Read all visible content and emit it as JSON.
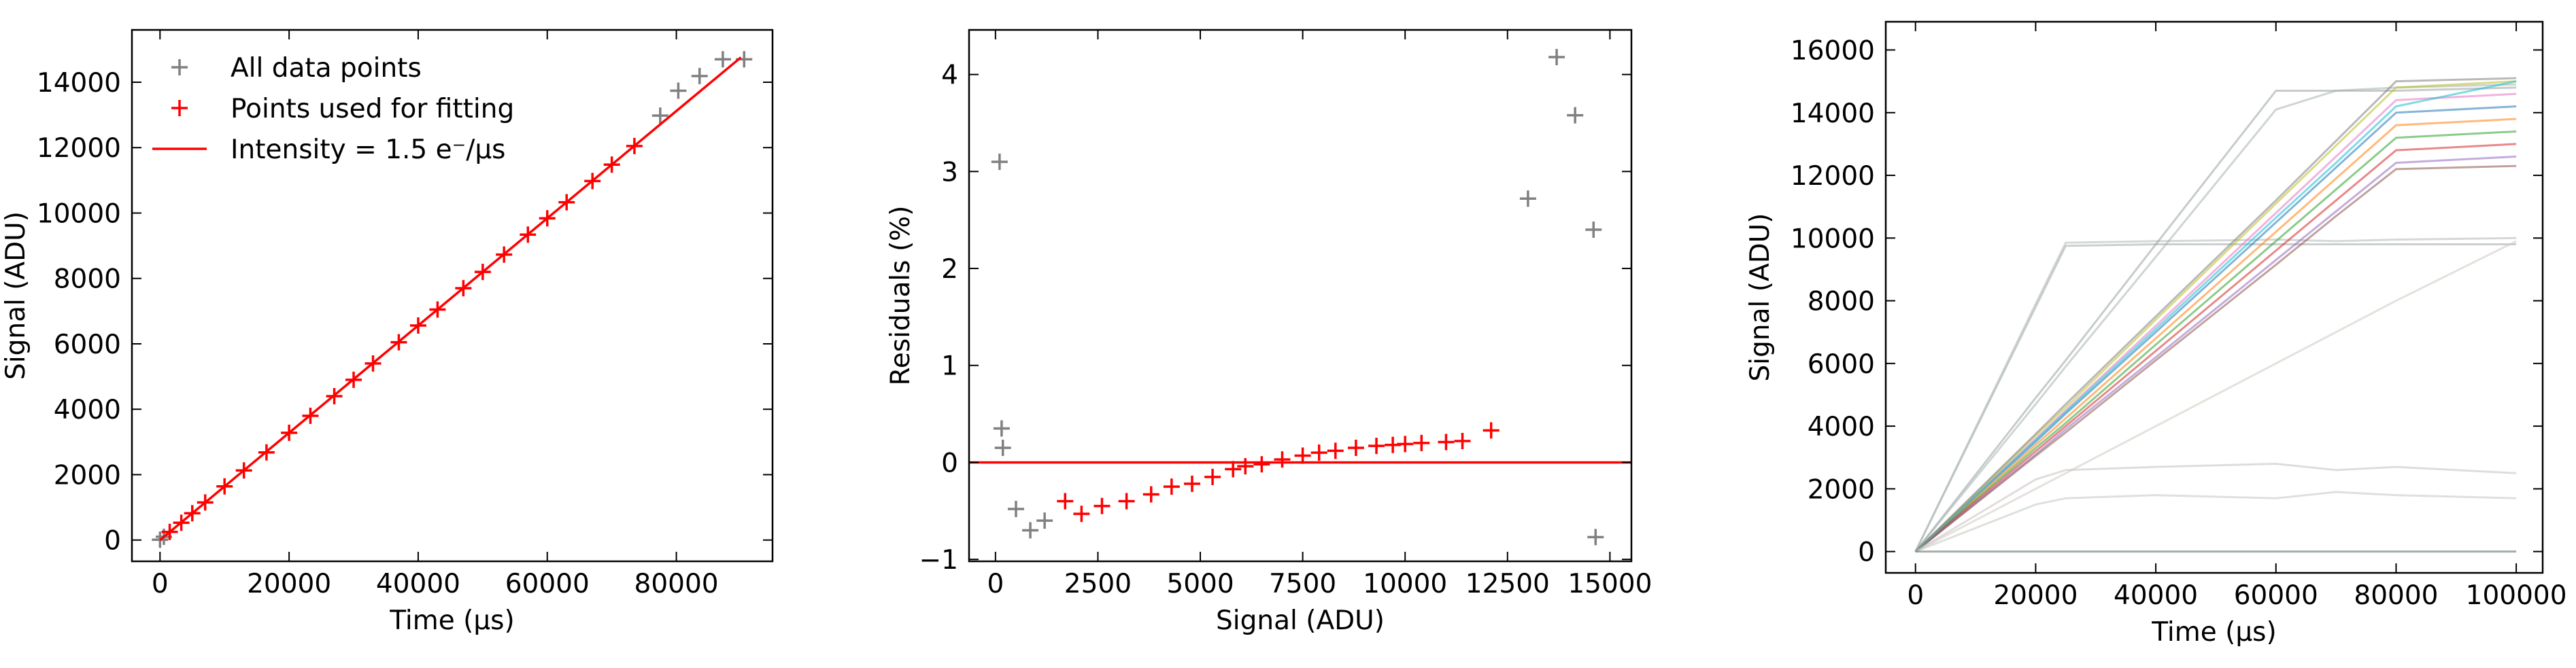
{
  "chart_data": [
    {
      "type": "scatter",
      "xlabel": "Time (μs)",
      "ylabel": "Signal (ADU)",
      "xlim": [
        -4350,
        94900
      ],
      "ylim": [
        -650,
        15600
      ],
      "xticks": [
        0,
        20000,
        40000,
        60000,
        80000
      ],
      "yticks": [
        0,
        2000,
        4000,
        6000,
        8000,
        10000,
        12000,
        14000
      ],
      "legend": "upper left",
      "series": [
        {
          "name": "All data points",
          "color": "#808080",
          "mode": "marker",
          "x": [
            0,
            600,
            77500,
            80300,
            83600,
            87200,
            90500
          ],
          "values": [
            10,
            100,
            12980,
            13740,
            14190,
            14700,
            14700
          ]
        },
        {
          "name": "Points used for fitting",
          "color": "#ff0000",
          "mode": "marker",
          "x": [
            1500,
            3300,
            5000,
            7000,
            10000,
            13000,
            16500,
            20000,
            23300,
            27000,
            30000,
            33000,
            37000,
            40000,
            43000,
            47000,
            50000,
            53300,
            57000,
            60000,
            63000,
            67000,
            70000,
            73500
          ],
          "values": [
            250,
            530,
            820,
            1150,
            1640,
            2130,
            2680,
            3280,
            3800,
            4400,
            4900,
            5400,
            6050,
            6560,
            7050,
            7700,
            8200,
            8730,
            9340,
            9840,
            10330,
            10980,
            11480,
            12050
          ]
        },
        {
          "name": "Intensity = 1.5 e⁻/μs",
          "color": "#ff0000",
          "mode": "line",
          "x": [
            0,
            90000
          ],
          "values": [
            0,
            14760
          ]
        }
      ]
    },
    {
      "type": "scatter",
      "xlabel": "Signal (ADU)",
      "ylabel": "Residuals (%)",
      "xlim": [
        -645,
        15525
      ],
      "ylim": [
        -1.02,
        4.46
      ],
      "xticks": [
        0,
        2500,
        5000,
        7500,
        10000,
        12500,
        15000
      ],
      "yticks": [
        {
          "value": -1,
          "label": "−1"
        },
        0,
        1,
        2,
        3,
        4
      ],
      "reference_line": 0,
      "reference_color": "#ff0000",
      "series": [
        {
          "color": "#808080",
          "mode": "marker",
          "x": [
            100,
            150,
            180,
            500,
            850,
            1200,
            13000,
            13700,
            14150,
            14600,
            14650
          ],
          "values": [
            3.1,
            0.35,
            0.15,
            -0.48,
            -0.7,
            -0.6,
            2.72,
            4.18,
            3.58,
            2.4,
            -0.77
          ]
        },
        {
          "color": "#ff0000",
          "mode": "marker",
          "x": [
            1700,
            2100,
            2600,
            3200,
            3800,
            4300,
            4800,
            5300,
            5800,
            6100,
            6500,
            7000,
            7500,
            7900,
            8300,
            8800,
            9300,
            9700,
            10000,
            10400,
            11000,
            11400,
            12100
          ],
          "values": [
            -0.4,
            -0.53,
            -0.45,
            -0.4,
            -0.33,
            -0.25,
            -0.22,
            -0.15,
            -0.07,
            -0.04,
            -0.02,
            0.03,
            0.07,
            0.1,
            0.12,
            0.15,
            0.17,
            0.18,
            0.19,
            0.2,
            0.21,
            0.22,
            0.33
          ]
        }
      ]
    },
    {
      "type": "line",
      "xlabel": "Time (μs)",
      "ylabel": "Signal (ADU)",
      "xlim": [
        -4950,
        104400
      ],
      "ylim": [
        -680,
        16900
      ],
      "xticks": [
        0,
        20000,
        40000,
        60000,
        80000,
        100000
      ],
      "yticks": [
        0,
        2000,
        4000,
        6000,
        8000,
        10000,
        12000,
        14000,
        16000
      ],
      "x": [
        0,
        20000,
        25000,
        40000,
        60000,
        70000,
        80000,
        100000
      ],
      "series": [
        {
          "color": "#a0a8a8",
          "values": [
            0,
            7800,
            9750,
            9800,
            9800,
            9800,
            9800,
            9800
          ]
        },
        {
          "color": "#b0b8b8",
          "values": [
            0,
            7900,
            9850,
            9900,
            9950,
            9900,
            9950,
            10000
          ]
        },
        {
          "color": "#98a0a0",
          "values": [
            0,
            4900,
            6100,
            9800,
            14700,
            14700,
            14700,
            14800
          ]
        },
        {
          "color": "#a8b0b0",
          "values": [
            0,
            4700,
            5900,
            9400,
            14100,
            14700,
            14800,
            14900
          ]
        },
        {
          "color": "#d0c8c0",
          "values": [
            0,
            2000,
            2500,
            4000,
            6000,
            7000,
            8000,
            9900
          ]
        },
        {
          "color": "#1f77b4",
          "values": [
            0,
            3500,
            4400,
            7000,
            10500,
            12250,
            14000,
            14200
          ]
        },
        {
          "color": "#ff7f0e",
          "values": [
            0,
            3400,
            4250,
            6800,
            10200,
            11900,
            13600,
            13800
          ]
        },
        {
          "color": "#2ca02c",
          "values": [
            0,
            3300,
            4100,
            6600,
            9900,
            11550,
            13200,
            13400
          ]
        },
        {
          "color": "#d62728",
          "values": [
            0,
            3200,
            4000,
            6400,
            9600,
            11200,
            12800,
            13000
          ]
        },
        {
          "color": "#9467bd",
          "values": [
            0,
            3100,
            3900,
            6200,
            9300,
            10850,
            12400,
            12600
          ]
        },
        {
          "color": "#8c564b",
          "values": [
            0,
            3050,
            3800,
            6100,
            9150,
            10700,
            12200,
            12300
          ]
        },
        {
          "color": "#e377c2",
          "values": [
            0,
            3600,
            4500,
            7200,
            10800,
            12600,
            14400,
            14600
          ]
        },
        {
          "color": "#bcbd22",
          "values": [
            0,
            3700,
            4600,
            7400,
            11100,
            12950,
            14800,
            15000
          ]
        },
        {
          "color": "#17becf",
          "values": [
            0,
            3550,
            4450,
            7100,
            10650,
            12400,
            14200,
            15000
          ]
        },
        {
          "color": "#7f7f7f",
          "values": [
            0,
            3750,
            4700,
            7500,
            11200,
            13100,
            15000,
            15100
          ]
        },
        {
          "color": "#c8c0c0",
          "values": [
            0,
            2300,
            2600,
            2700,
            2800,
            2600,
            2700,
            2500
          ]
        },
        {
          "color": "#c0c8c0",
          "values": [
            0,
            1500,
            1700,
            1800,
            1700,
            1900,
            1800,
            1700
          ]
        },
        {
          "color": "#5a6a60",
          "values": [
            0,
            0,
            0,
            0,
            0,
            0,
            0,
            0
          ]
        }
      ]
    }
  ]
}
